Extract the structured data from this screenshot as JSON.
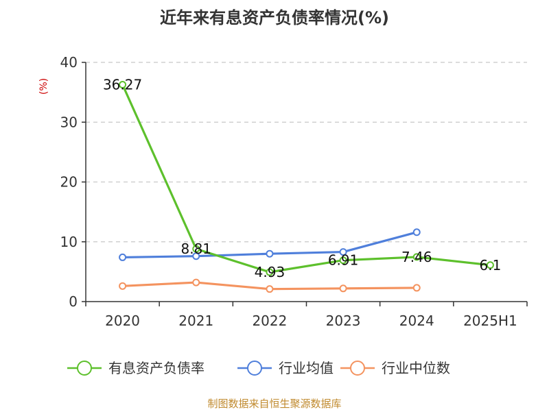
{
  "chart_data": {
    "type": "line",
    "title": "近年来有息资产负债率情况(%)",
    "ylabel": "(%)",
    "categories": [
      "2020",
      "2021",
      "2022",
      "2023",
      "2024",
      "2025H1"
    ],
    "ylim": [
      0,
      40
    ],
    "yticks": [
      "0",
      "10",
      "20",
      "30",
      "40"
    ],
    "grid": true,
    "legend_placement": "bottom",
    "series": [
      {
        "name": "有息资产负债率",
        "color": "#5dc02c",
        "values": [
          36.27,
          8.81,
          4.93,
          6.91,
          7.46,
          6.1
        ],
        "labels": [
          "36.27",
          "8.81",
          "4.93",
          "6.91",
          "7.46",
          "6.1"
        ]
      },
      {
        "name": "行业均值",
        "color": "#4f7fdb",
        "values": [
          7.4,
          7.6,
          8.0,
          8.3,
          11.6,
          null
        ]
      },
      {
        "name": "行业中位数",
        "color": "#f4935f",
        "values": [
          2.6,
          3.2,
          2.1,
          2.2,
          2.3,
          null
        ]
      }
    ],
    "source": "制图数据来自恒生聚源数据库"
  }
}
